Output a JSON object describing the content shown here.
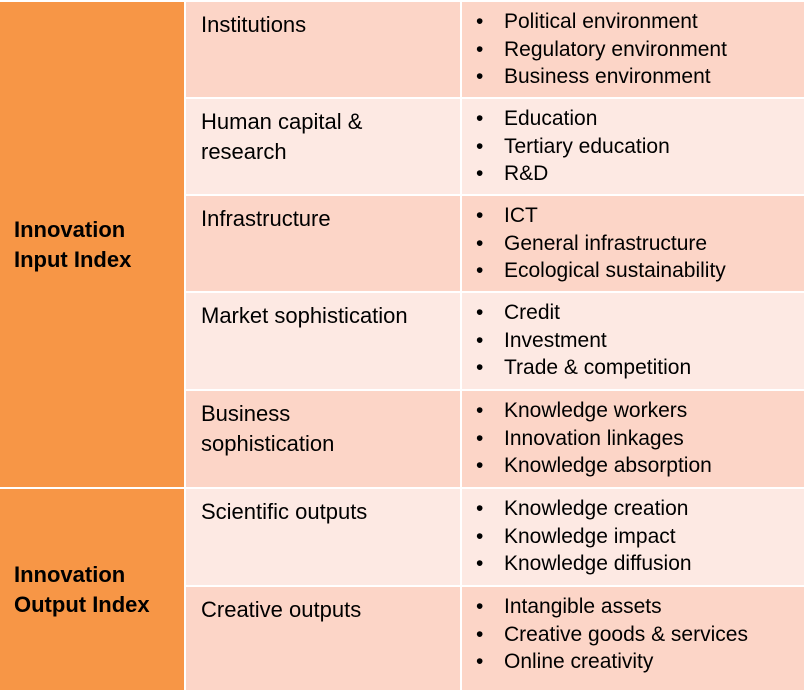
{
  "groups": [
    {
      "label": "Innovation\nInput Index"
    },
    {
      "label": "Innovation\nOutput Index"
    }
  ],
  "rows": [
    {
      "pillar": "Institutions",
      "subpillars": [
        "Political environment",
        "Regulatory environment",
        "Business environment"
      ]
    },
    {
      "pillar": "Human capital &\nresearch",
      "subpillars": [
        "Education",
        "Tertiary education",
        "R&D"
      ]
    },
    {
      "pillar": "Infrastructure",
      "subpillars": [
        "ICT",
        "General infrastructure",
        "Ecological sustainability"
      ]
    },
    {
      "pillar": "Market sophistication",
      "subpillars": [
        "Credit",
        "Investment",
        "Trade & competition"
      ]
    },
    {
      "pillar": "Business\nsophistication",
      "subpillars": [
        "Knowledge workers",
        "Innovation linkages",
        "Knowledge absorption"
      ]
    },
    {
      "pillar": "Scientific outputs",
      "subpillars": [
        "Knowledge creation",
        "Knowledge impact",
        "Knowledge diffusion"
      ]
    },
    {
      "pillar": "Creative outputs",
      "subpillars": [
        "Intangible assets",
        "Creative goods & services",
        "Online creativity"
      ]
    }
  ],
  "bullet_glyph": "•",
  "colors": {
    "group_fill": "#f79646",
    "row_dark": "#fcd5c7",
    "row_light": "#fde9e3",
    "divider": "#ffffff"
  }
}
